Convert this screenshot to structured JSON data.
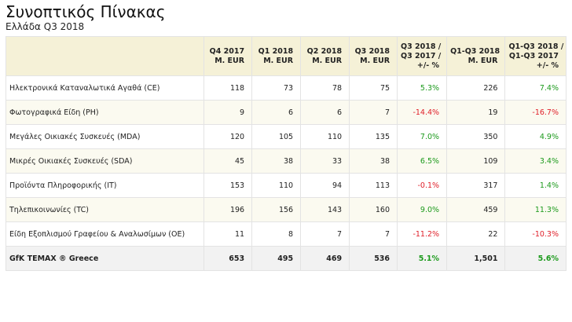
{
  "header": {
    "title": "Συνοπτικός Πίνακας",
    "subtitle": "Ελλάδα Q3 2018"
  },
  "colors": {
    "header_bg": "#f5f1d7",
    "stripe_bg": "#fbfaf0",
    "total_bg": "#f2f2f2",
    "positive": "#1c9a1c",
    "negative": "#e0202a"
  },
  "table": {
    "columns": [
      {
        "line1": "",
        "line2": "",
        "line3": ""
      },
      {
        "line1": "Q4 2017",
        "line2": "M. EUR",
        "line3": ""
      },
      {
        "line1": "Q1 2018",
        "line2": "M. EUR",
        "line3": ""
      },
      {
        "line1": "Q2 2018",
        "line2": "M. EUR",
        "line3": ""
      },
      {
        "line1": "Q3 2018",
        "line2": "M. EUR",
        "line3": ""
      },
      {
        "line1": "Q3 2018 /",
        "line2": "Q3 2017 /",
        "line3": "+/- %"
      },
      {
        "line1": "Q1-Q3 2018",
        "line2": "M. EUR",
        "line3": ""
      },
      {
        "line1": "Q1-Q3 2018 /",
        "line2": "Q1-Q3 2017",
        "line3": "+/- %"
      }
    ],
    "rows": [
      {
        "name": "Ηλεκτρονικά Καταναλωτικά Αγαθά (CE)",
        "q4_2017": "118",
        "q1_2018": "73",
        "q2_2018": "78",
        "q3_2018": "75",
        "q3_yoy": "5.3%",
        "q3_yoy_sign": "pos",
        "ytd": "226",
        "ytd_yoy": "7.4%",
        "ytd_yoy_sign": "pos"
      },
      {
        "name": "Φωτογραφικά Είδη (PH)",
        "q4_2017": "9",
        "q1_2018": "6",
        "q2_2018": "6",
        "q3_2018": "7",
        "q3_yoy": "-14.4%",
        "q3_yoy_sign": "neg",
        "ytd": "19",
        "ytd_yoy": "-16.7%",
        "ytd_yoy_sign": "neg"
      },
      {
        "name": "Μεγάλες Οικιακές Συσκευές (MDA)",
        "q4_2017": "120",
        "q1_2018": "105",
        "q2_2018": "110",
        "q3_2018": "135",
        "q3_yoy": "7.0%",
        "q3_yoy_sign": "pos",
        "ytd": "350",
        "ytd_yoy": "4.9%",
        "ytd_yoy_sign": "pos"
      },
      {
        "name": "Μικρές Οικιακές Συσκευές (SDA)",
        "q4_2017": "45",
        "q1_2018": "38",
        "q2_2018": "33",
        "q3_2018": "38",
        "q3_yoy": "6.5%",
        "q3_yoy_sign": "pos",
        "ytd": "109",
        "ytd_yoy": "3.4%",
        "ytd_yoy_sign": "pos"
      },
      {
        "name": "Προϊόντα Πληροφορικής (IT)",
        "q4_2017": "153",
        "q1_2018": "110",
        "q2_2018": "94",
        "q3_2018": "113",
        "q3_yoy": "-0.1%",
        "q3_yoy_sign": "neg",
        "ytd": "317",
        "ytd_yoy": "1.4%",
        "ytd_yoy_sign": "pos"
      },
      {
        "name": "Τηλεπικοινωνίες (TC)",
        "q4_2017": "196",
        "q1_2018": "156",
        "q2_2018": "143",
        "q3_2018": "160",
        "q3_yoy": "9.0%",
        "q3_yoy_sign": "pos",
        "ytd": "459",
        "ytd_yoy": "11.3%",
        "ytd_yoy_sign": "pos"
      },
      {
        "name": "Είδη Εξοπλισμού Γραφείου & Αναλωσίμων (OE)",
        "q4_2017": "11",
        "q1_2018": "8",
        "q2_2018": "7",
        "q3_2018": "7",
        "q3_yoy": "-11.2%",
        "q3_yoy_sign": "neg",
        "ytd": "22",
        "ytd_yoy": "-10.3%",
        "ytd_yoy_sign": "neg"
      }
    ],
    "total": {
      "name": "GfK TEMAX ® Greece",
      "q4_2017": "653",
      "q1_2018": "495",
      "q2_2018": "469",
      "q3_2018": "536",
      "q3_yoy": "5.1%",
      "q3_yoy_sign": "pos",
      "ytd": "1,501",
      "ytd_yoy": "5.6%",
      "ytd_yoy_sign": "pos"
    }
  }
}
